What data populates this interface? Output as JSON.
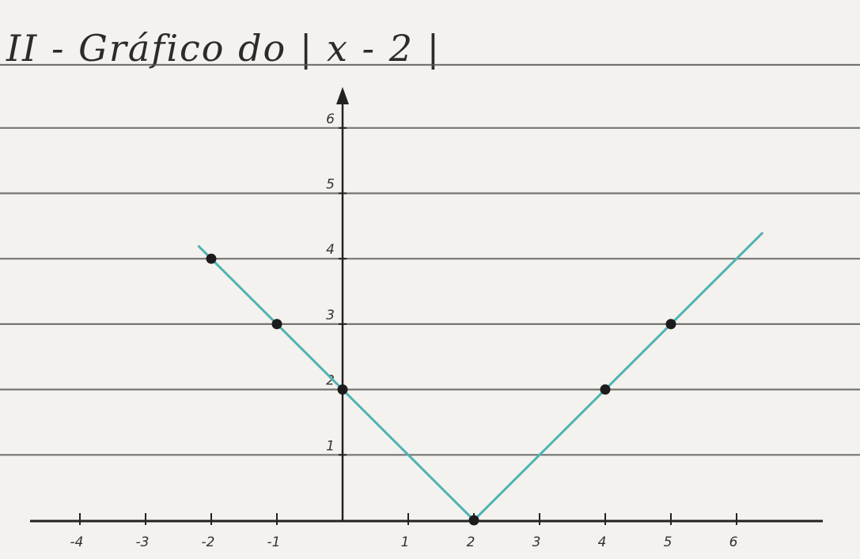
{
  "chart_data": {
    "type": "line",
    "title": "II - Gráfico do | x - 2 |",
    "xlabel": "",
    "ylabel": "",
    "xlim": [
      -5,
      7
    ],
    "ylim": [
      0,
      6
    ],
    "x_ticks": [
      -4,
      -3,
      -2,
      -1,
      1,
      2,
      3,
      4,
      5,
      6
    ],
    "x_tick_labels": [
      "-4",
      "-3",
      "-2",
      "-1",
      "1",
      "2",
      "3",
      "4",
      "5",
      "6"
    ],
    "y_ticks": [
      1,
      2,
      3,
      4,
      5,
      6
    ],
    "y_tick_labels": [
      "1",
      "2",
      "3",
      "4",
      "5",
      "6"
    ],
    "grid": "horizontal ruled lines",
    "series": [
      {
        "color": "#4fb3b3",
        "line": [
          [
            -2.2,
            4.2
          ],
          [
            2,
            0
          ],
          [
            6.4,
            4.4
          ]
        ],
        "points": [
          [
            -2,
            4
          ],
          [
            -1,
            3
          ],
          [
            0,
            2
          ],
          [
            2,
            0
          ],
          [
            4,
            2
          ],
          [
            5,
            3
          ]
        ]
      }
    ],
    "point_color": "#1c1c1c",
    "axis_color": "#222222",
    "rule_color": "#555555",
    "paper_color": "#f4f2ee"
  }
}
